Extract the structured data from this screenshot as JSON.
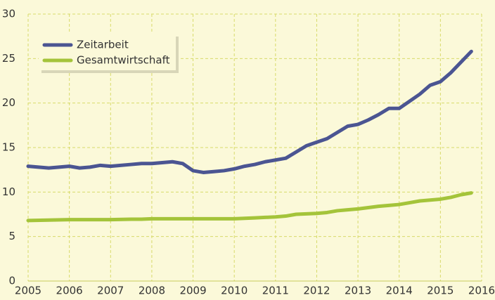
{
  "chart_data": {
    "type": "line",
    "xlim": [
      2005,
      2016
    ],
    "xticks": [
      2005,
      2006,
      2007,
      2008,
      2009,
      2010,
      2011,
      2012,
      2013,
      2014,
      2015,
      2016
    ],
    "ylim": [
      0,
      30
    ],
    "yticks": [
      0,
      5,
      10,
      15,
      20,
      25,
      30
    ],
    "grid": true,
    "legend": "upper left",
    "x": [
      2005,
      2005.5,
      2006,
      2006.25,
      2006.5,
      2006.75,
      2007,
      2007.5,
      2007.75,
      2008,
      2008.25,
      2008.5,
      2008.75,
      2009,
      2009.25,
      2009.5,
      2009.75,
      2010,
      2010.25,
      2010.5,
      2010.75,
      2011,
      2011.25,
      2011.5,
      2011.75,
      2012,
      2012.25,
      2012.5,
      2012.75,
      2013,
      2013.25,
      2013.5,
      2013.75,
      2014,
      2014.25,
      2014.5,
      2014.75,
      2015,
      2015.25,
      2015.5,
      2015.75
    ],
    "series": [
      {
        "name": "Zeitarbeit",
        "color": "#4b5592",
        "values": [
          12.9,
          12.7,
          12.9,
          12.7,
          12.8,
          13.0,
          12.9,
          13.1,
          13.2,
          13.2,
          13.3,
          13.4,
          13.2,
          12.4,
          12.2,
          12.3,
          12.4,
          12.6,
          12.9,
          13.1,
          13.4,
          13.6,
          13.8,
          14.5,
          15.2,
          15.6,
          16.0,
          16.7,
          17.4,
          17.6,
          18.1,
          18.7,
          19.4,
          19.4,
          20.2,
          21.0,
          22.0,
          22.4,
          23.4,
          24.6,
          25.8
        ]
      },
      {
        "name": "Gesamtwirtschaft",
        "color": "#a4c43a",
        "values": [
          6.8,
          6.85,
          6.9,
          6.9,
          6.9,
          6.9,
          6.9,
          6.95,
          6.95,
          7.0,
          7.0,
          7.0,
          7.0,
          7.0,
          7.0,
          7.0,
          7.0,
          7.0,
          7.05,
          7.1,
          7.15,
          7.2,
          7.3,
          7.5,
          7.55,
          7.6,
          7.7,
          7.9,
          8.0,
          8.1,
          8.25,
          8.4,
          8.5,
          8.6,
          8.8,
          9.0,
          9.1,
          9.2,
          9.4,
          9.7,
          9.9
        ]
      }
    ]
  }
}
